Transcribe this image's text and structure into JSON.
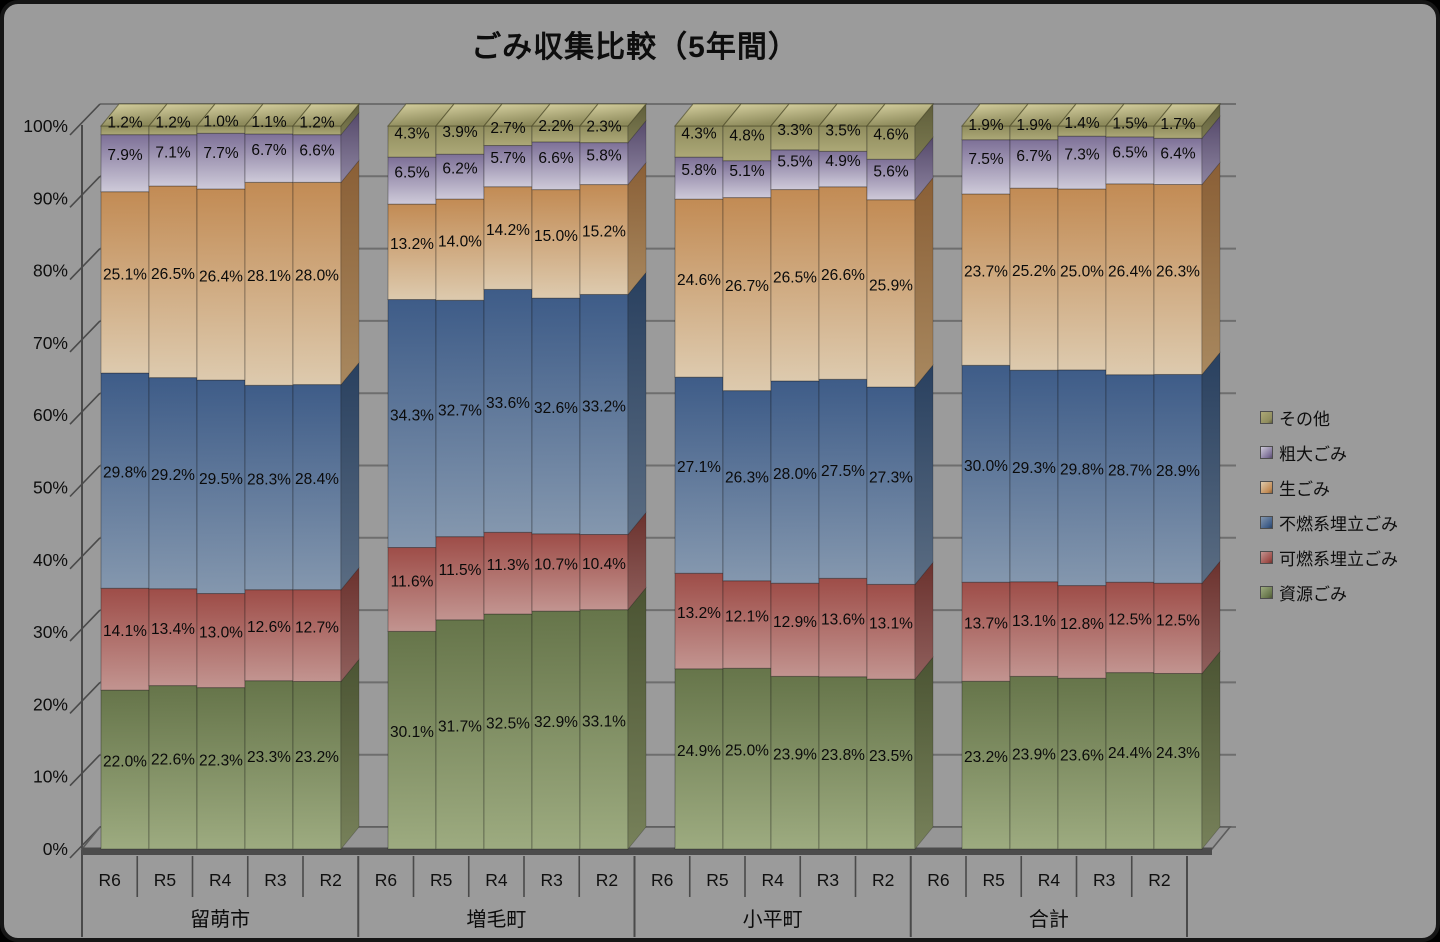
{
  "window": {
    "background": "#9b9b9b"
  },
  "chart_data": {
    "type": "bar",
    "subtype": "100%-stacked-3d-column",
    "title": "ごみ収集比較（5年間）",
    "grid": true,
    "legend_position": "right",
    "y_axis": {
      "min": 0,
      "max": 100,
      "step": 10,
      "tick_labels": [
        "0%",
        "10%",
        "20%",
        "30%",
        "40%",
        "50%",
        "60%",
        "70%",
        "80%",
        "90%",
        "100%"
      ]
    },
    "groups": [
      "留萌市",
      "増毛町",
      "小平町",
      "合計"
    ],
    "years": [
      "R6",
      "R5",
      "R4",
      "R3",
      "R2"
    ],
    "series": [
      {
        "name": "資源ごみ",
        "colors": {
          "front_top": "#66754a",
          "front_bottom": "#9dab80",
          "side_top": "#4b5433",
          "side_bottom": "#77815a"
        },
        "values": {
          "留萌市": [
            22.0,
            22.6,
            22.3,
            23.3,
            23.2
          ],
          "増毛町": [
            30.1,
            31.7,
            32.5,
            32.9,
            33.1
          ],
          "小平町": [
            24.9,
            25.0,
            23.9,
            23.8,
            23.5
          ],
          "合計": [
            23.2,
            23.9,
            23.6,
            24.4,
            24.3
          ]
        }
      },
      {
        "name": "可燃系埋立ごみ",
        "colors": {
          "front_top": "#9e4d48",
          "front_bottom": "#c29490",
          "side_top": "#6b322e",
          "side_bottom": "#8f5f5c"
        },
        "values": {
          "留萌市": [
            14.1,
            13.4,
            13.0,
            12.6,
            12.7
          ],
          "増毛町": [
            11.6,
            11.5,
            11.3,
            10.7,
            10.4
          ],
          "小平町": [
            13.2,
            12.1,
            12.9,
            13.6,
            13.1
          ],
          "合計": [
            13.7,
            13.1,
            12.8,
            12.5,
            12.5
          ]
        }
      },
      {
        "name": "不燃系埋立ごみ",
        "colors": {
          "front_top": "#3e5c88",
          "front_bottom": "#8497ae",
          "side_top": "#29405f",
          "side_bottom": "#5a6c82"
        },
        "values": {
          "留萌市": [
            29.8,
            29.2,
            29.5,
            28.3,
            28.4
          ],
          "増毛町": [
            34.3,
            32.7,
            33.6,
            32.6,
            33.2
          ],
          "小平町": [
            27.1,
            26.3,
            28.0,
            27.5,
            27.3
          ],
          "合計": [
            30.0,
            29.3,
            29.8,
            28.7,
            28.9
          ]
        }
      },
      {
        "name": "生ごみ",
        "colors": {
          "front_top": "#c28b54",
          "front_bottom": "#ddcaae",
          "side_top": "#8a5f36",
          "side_bottom": "#a8885f"
        },
        "values": {
          "留萌市": [
            25.1,
            26.5,
            26.4,
            28.1,
            28.0
          ],
          "増毛町": [
            13.2,
            14.0,
            14.2,
            15.0,
            15.2
          ],
          "小平町": [
            24.6,
            26.7,
            26.5,
            26.6,
            25.9
          ],
          "合計": [
            23.7,
            25.2,
            25.0,
            26.4,
            26.3
          ]
        }
      },
      {
        "name": "粗大ごみ",
        "colors": {
          "front_top": "#7d7097",
          "front_bottom": "#cecad9",
          "side_top": "#564a6b",
          "side_bottom": "#8d84a0"
        },
        "values": {
          "留萌市": [
            7.9,
            7.1,
            7.7,
            6.7,
            6.6
          ],
          "増毛町": [
            6.5,
            6.2,
            5.7,
            6.6,
            5.8
          ],
          "小平町": [
            5.8,
            5.1,
            5.5,
            4.9,
            5.6
          ],
          "合計": [
            7.5,
            6.7,
            7.3,
            6.5,
            6.4
          ]
        }
      },
      {
        "name": "その他",
        "colors": {
          "front_top": "#8f8c5d",
          "front_bottom": "#aca877",
          "side_top": "#5f5e3b",
          "side_bottom": "#7c7a50"
        },
        "values": {
          "留萌市": [
            1.2,
            1.2,
            1.0,
            1.1,
            1.2
          ],
          "増毛町": [
            4.3,
            3.9,
            2.7,
            2.2,
            2.3
          ],
          "小平町": [
            4.3,
            4.8,
            3.3,
            3.5,
            4.6
          ],
          "合計": [
            1.9,
            1.9,
            1.4,
            1.5,
            1.7
          ]
        }
      }
    ],
    "bar_top_face": {
      "light": "#d8d2a2",
      "dark": "#8e8b5c"
    },
    "legend_order_top_to_bottom": [
      "その他",
      "粗大ごみ",
      "生ごみ",
      "不燃系埋立ごみ",
      "可燃系埋立ごみ",
      "資源ごみ"
    ],
    "palette": {
      "background": "#9b9b9b",
      "gridline": "#6e6e6e",
      "axis_line": "#4a4a4a",
      "floor_fill": "#969696",
      "floor_edge": "#5c5c5c",
      "floor_front": "#4c4c4c",
      "label_color": "#0a0a0a"
    }
  }
}
